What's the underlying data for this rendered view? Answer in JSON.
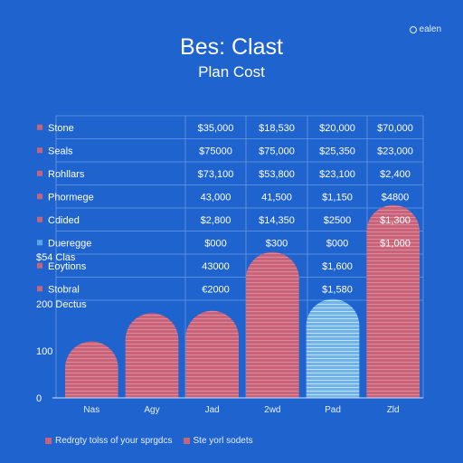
{
  "header": {
    "title": "Bes: Clast",
    "subtitle": "Plan Cost",
    "badge": "ealen"
  },
  "colors": {
    "background": "#1f63cf",
    "bar_primary": "#c8637a",
    "bar_alt": "#6fb3ea",
    "grid": "#6b9ae0"
  },
  "chart_data": {
    "type": "bar",
    "title": "Bes: Clast",
    "subtitle": "Plan Cost",
    "categories": [
      "Nas",
      "Agy",
      "Jad",
      "2wd",
      "Pad",
      "Zld"
    ],
    "values": [
      120,
      180,
      185,
      310,
      210,
      410
    ],
    "highlight_index": 4,
    "ylim": [
      0,
      600
    ],
    "y_ticks": [
      {
        "value": 0,
        "label": "0"
      },
      {
        "value": 100,
        "label": "100"
      },
      {
        "value": 200,
        "label": "200 Dectus"
      },
      {
        "value": 300,
        "label": "$54 Clas"
      }
    ],
    "table": {
      "rows": [
        {
          "label": "Stone",
          "marker": "primary",
          "cells": [
            "$35,000",
            "$18,530",
            "$20,000",
            "$70,000"
          ]
        },
        {
          "label": "Seals",
          "marker": "primary",
          "cells": [
            "$75000",
            "$75,000",
            "$25,350",
            "$23,000"
          ]
        },
        {
          "label": "Rohllars",
          "marker": "primary",
          "cells": [
            "$73,100",
            "$53,800",
            "$23,100",
            "$2,400"
          ]
        },
        {
          "label": "Phormege",
          "marker": "primary",
          "cells": [
            "43,000",
            "41,500",
            "$1,150",
            "$4800"
          ]
        },
        {
          "label": "Cdided",
          "marker": "primary",
          "cells": [
            "$2,800",
            "$14,350",
            "$2500",
            "$1,300"
          ]
        },
        {
          "label": "Dueregge",
          "marker": "alt",
          "cells": [
            "$000",
            "$300",
            "$000",
            "$1,000"
          ]
        },
        {
          "label": "Eoytions",
          "marker": "primary",
          "cells": [
            "43000",
            "",
            "$1,600",
            ""
          ]
        },
        {
          "label": "Stobral",
          "marker": "primary",
          "cells": [
            "€2000",
            "",
            "$1,580",
            ""
          ]
        }
      ]
    },
    "legend": [
      {
        "label": "Redrgty tolss of your sprgdcs",
        "marker": "primary"
      },
      {
        "label": "Ste yorl sodets",
        "marker": "primary"
      }
    ]
  }
}
